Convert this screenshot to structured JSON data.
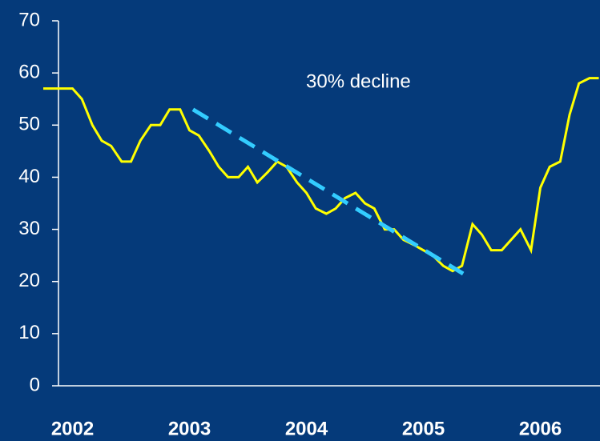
{
  "chart_data": {
    "type": "line",
    "x": [
      2001.75,
      2001.83,
      2001.92,
      2002.0,
      2002.08,
      2002.17,
      2002.25,
      2002.33,
      2002.42,
      2002.5,
      2002.58,
      2002.67,
      2002.75,
      2002.83,
      2002.92,
      2003.0,
      2003.08,
      2003.17,
      2003.25,
      2003.33,
      2003.42,
      2003.5,
      2003.58,
      2003.67,
      2003.75,
      2003.83,
      2003.92,
      2004.0,
      2004.08,
      2004.17,
      2004.25,
      2004.33,
      2004.42,
      2004.5,
      2004.58,
      2004.67,
      2004.75,
      2004.83,
      2004.92,
      2005.0,
      2005.08,
      2005.17,
      2005.25,
      2005.33,
      2005.42,
      2005.5,
      2005.58,
      2005.67,
      2005.75,
      2005.83,
      2005.92,
      2006.0,
      2006.08,
      2006.17,
      2006.25,
      2006.33,
      2006.42,
      2006.5
    ],
    "series": [
      {
        "color": "#ffff00",
        "values": [
          57,
          57,
          57,
          57,
          55,
          50,
          47,
          46,
          43,
          43,
          47,
          50,
          50,
          53,
          53,
          49,
          48,
          45,
          42,
          40,
          40,
          42,
          39,
          41,
          43,
          42,
          39,
          37,
          34,
          33,
          34,
          36,
          37,
          35,
          34,
          30,
          30,
          28,
          27,
          26,
          25,
          23,
          22,
          23,
          31,
          29,
          26,
          26,
          28,
          30,
          26,
          38,
          42,
          43,
          52,
          58,
          59,
          59
        ]
      }
    ],
    "trend": {
      "x": [
        2003.03,
        2005.34
      ],
      "values": [
        53,
        21.5
      ],
      "color": "#33ccff"
    },
    "annotation": "30% decline",
    "xlim": [
      2001.88,
      2006.51
    ],
    "xticks": [
      2002,
      2003,
      2004,
      2005,
      2006
    ],
    "ylim": [
      0,
      70
    ],
    "yticks": [
      0,
      10,
      20,
      30,
      40,
      50,
      60,
      70
    ]
  }
}
